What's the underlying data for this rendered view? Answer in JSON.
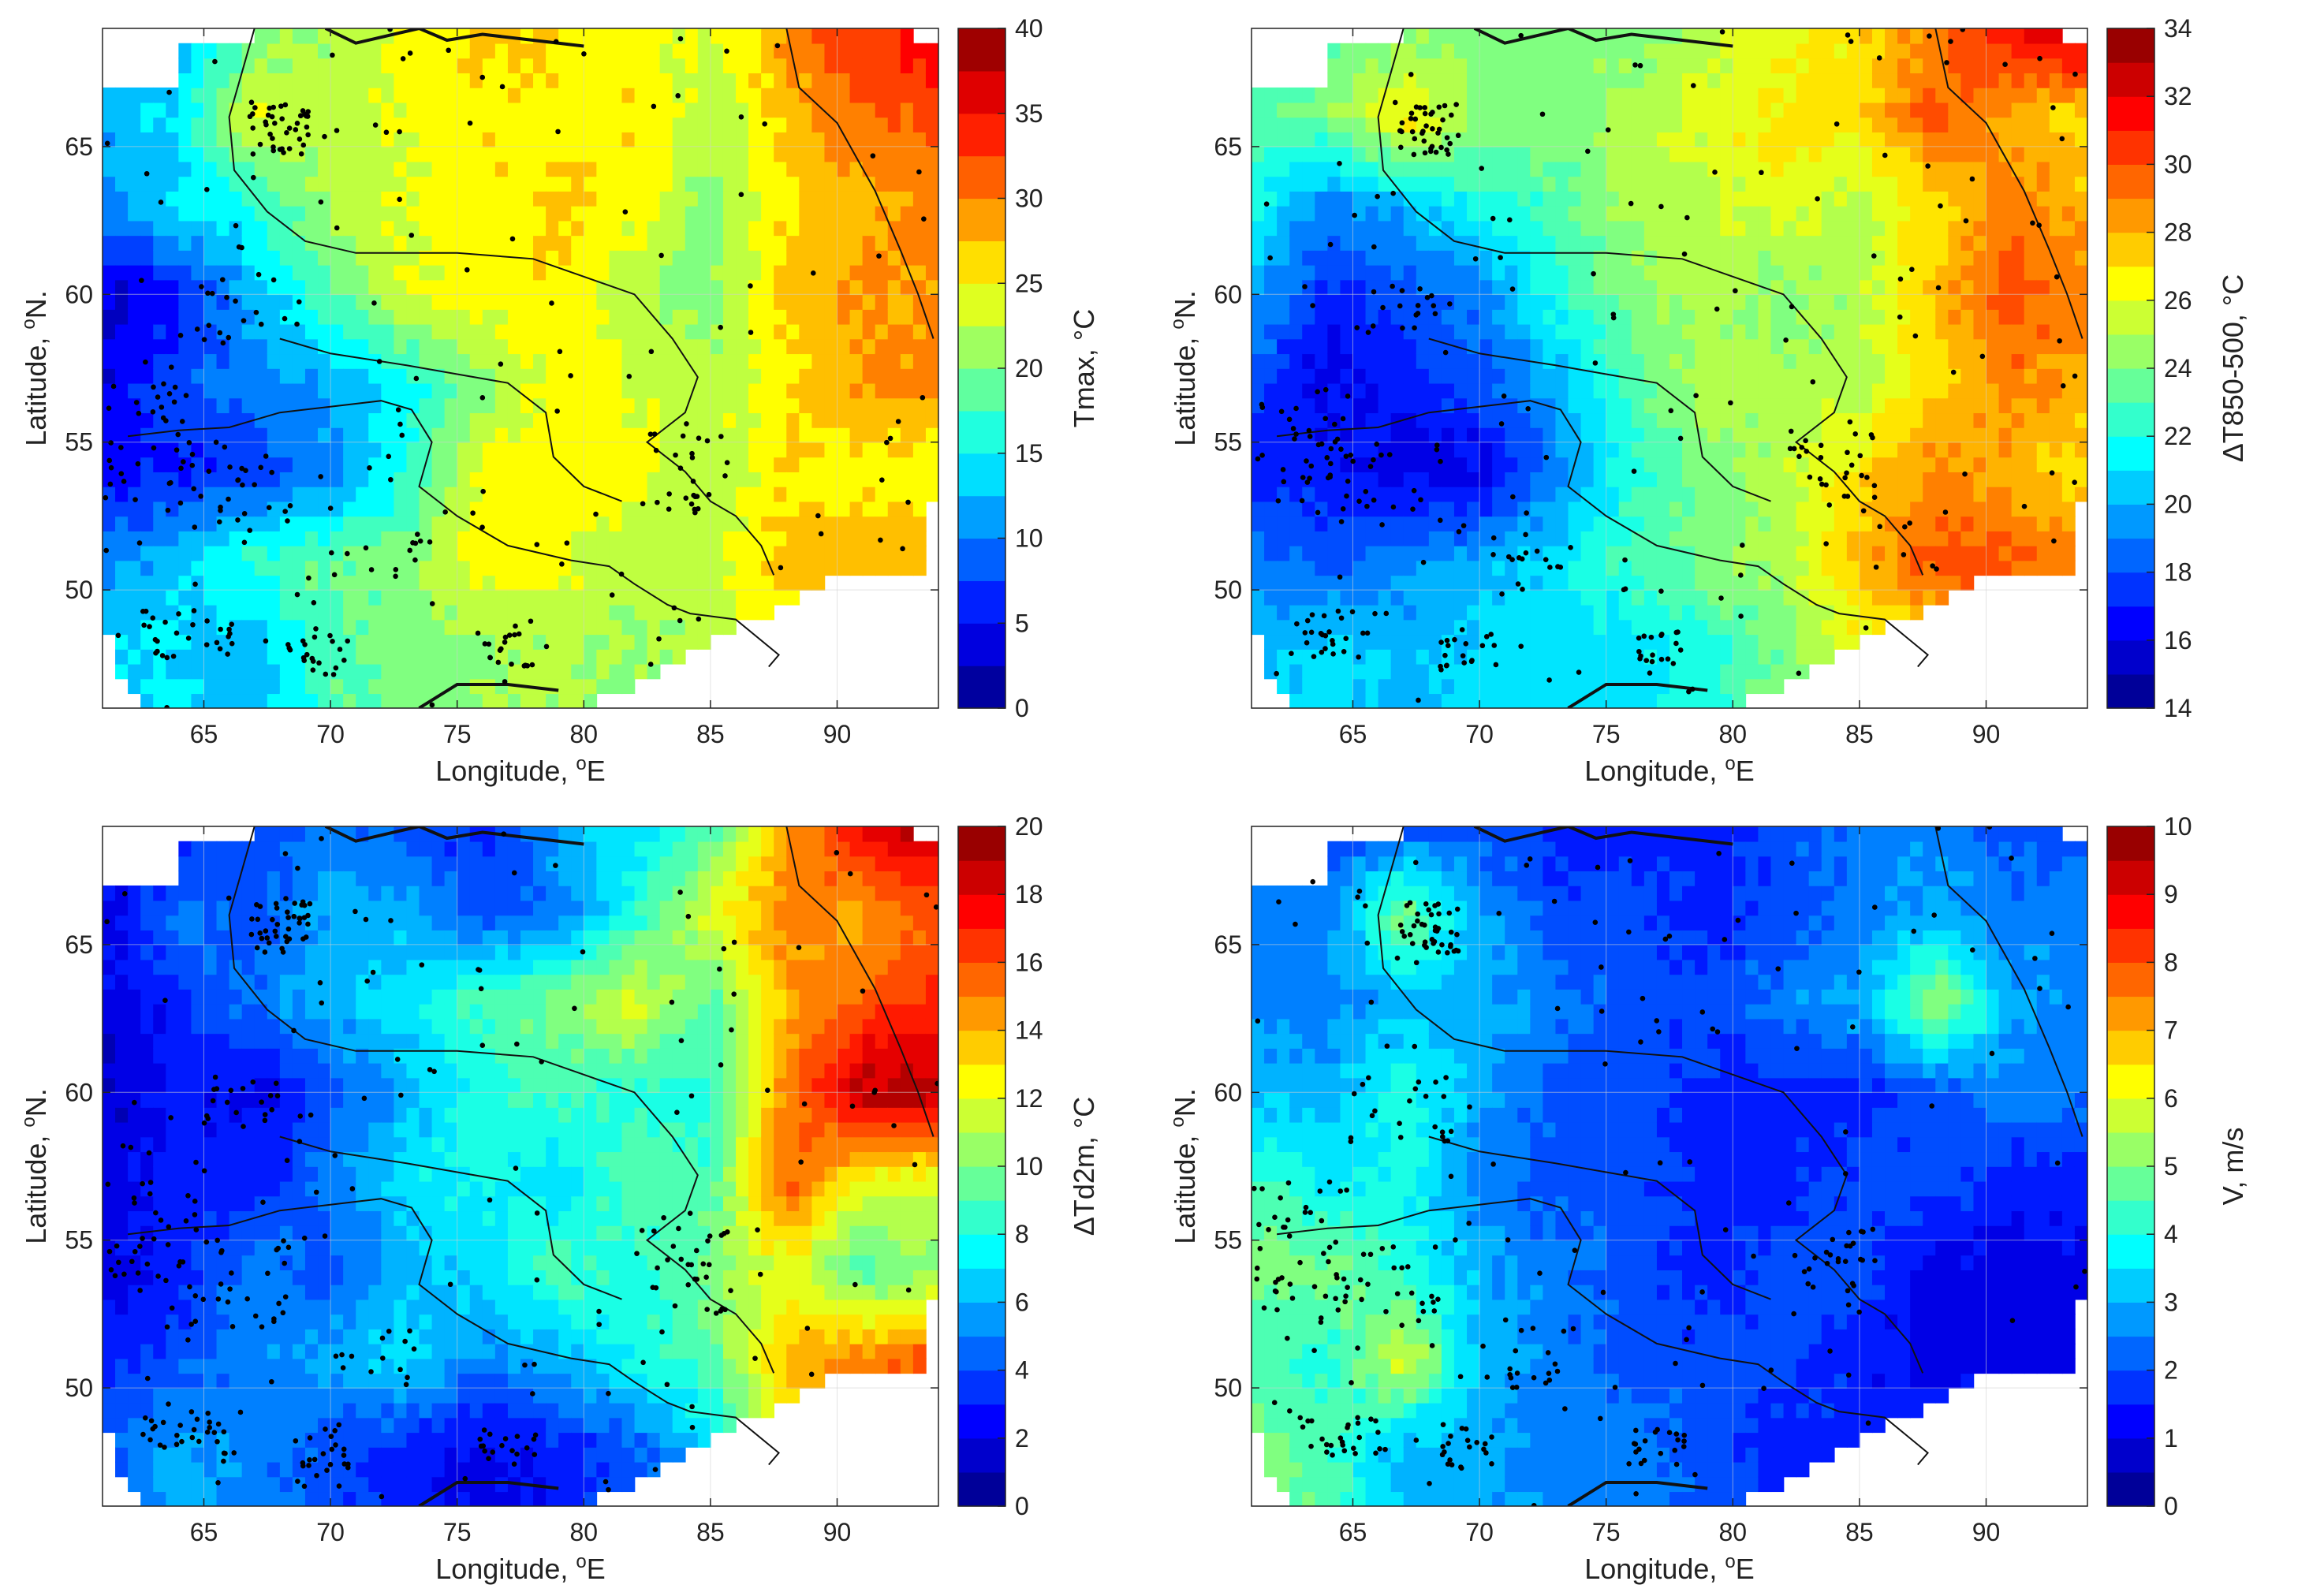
{
  "figure": {
    "panels": [
      {
        "id": "tmax",
        "xlabel": {
          "base": "Longitude, ",
          "sup": "o",
          "tail": "E"
        },
        "ylabel": {
          "base": "Latitude, ",
          "sup": "o",
          "tail": "N."
        },
        "colorbar_label": "Tmax, °C",
        "colorbar_ticks": [
          "0",
          "5",
          "10",
          "15",
          "20",
          "25",
          "30",
          "35",
          "40"
        ]
      },
      {
        "id": "dt850500",
        "xlabel": {
          "base": "Longitude, ",
          "sup": "o",
          "tail": "E"
        },
        "ylabel": {
          "base": "Latitude, ",
          "sup": "o",
          "tail": "N."
        },
        "colorbar_label": "ΔT850-500, °C",
        "colorbar_ticks": [
          "14",
          "16",
          "18",
          "20",
          "22",
          "24",
          "26",
          "28",
          "30",
          "32",
          "34"
        ]
      },
      {
        "id": "dtd2m",
        "xlabel": {
          "base": "Longitude, ",
          "sup": "o",
          "tail": "E"
        },
        "ylabel": {
          "base": "Latitude, ",
          "sup": "o",
          "tail": "N."
        },
        "colorbar_label": "ΔTd2m, °C",
        "colorbar_ticks": [
          "0",
          "2",
          "4",
          "6",
          "8",
          "10",
          "12",
          "14",
          "16",
          "18",
          "20"
        ]
      },
      {
        "id": "wind",
        "xlabel": {
          "base": "Longitude, ",
          "sup": "o",
          "tail": "E"
        },
        "ylabel": {
          "base": "Latitude, ",
          "sup": "o",
          "tail": "N."
        },
        "colorbar_label": "V, m/s",
        "colorbar_ticks": [
          "0",
          "1",
          "2",
          "3",
          "4",
          "5",
          "6",
          "7",
          "8",
          "9",
          "10"
        ]
      }
    ]
  },
  "chart_data": [
    {
      "type": "heatmap",
      "variable": "Tmax, °C",
      "x_ticks": [
        65,
        70,
        75,
        80,
        85,
        90
      ],
      "y_ticks": [
        50,
        55,
        60,
        65
      ],
      "xlim": [
        61,
        94
      ],
      "ylim": [
        46,
        69
      ],
      "colorbar_range": [
        0,
        40
      ],
      "colormap": "jet",
      "stations_shown": true,
      "field_grid": {
        "lon": [
          61,
          64,
          67,
          70,
          73,
          76,
          79,
          82,
          85,
          88,
          91,
          94
        ],
        "lat": [
          48,
          51,
          54,
          57,
          60,
          63,
          66,
          69
        ],
        "values": [
          [
            14,
            14,
            12,
            18,
            20,
            21,
            22,
            21,
            22,
            26,
            26,
            26
          ],
          [
            10,
            13,
            17,
            19,
            20,
            25,
            24,
            22,
            23,
            27,
            28,
            28
          ],
          [
            5,
            6,
            7,
            10,
            16,
            25,
            26,
            24,
            22,
            26,
            25,
            24
          ],
          [
            4,
            8,
            10,
            12,
            15,
            20,
            25,
            24,
            22,
            26,
            29,
            30
          ],
          [
            3,
            6,
            12,
            18,
            24,
            25,
            26,
            22,
            20,
            27,
            29,
            29
          ],
          [
            10,
            14,
            16,
            22,
            24,
            25,
            27,
            25,
            20,
            26,
            28,
            30
          ],
          [
            12,
            14,
            24,
            22,
            24,
            26,
            25,
            26,
            22,
            27,
            31,
            32
          ],
          [
            10,
            12,
            20,
            22,
            24,
            27,
            26,
            25,
            23,
            30,
            33,
            36
          ]
        ]
      }
    },
    {
      "type": "heatmap",
      "variable": "ΔT850-500, °C",
      "x_ticks": [
        65,
        70,
        75,
        80,
        85,
        90
      ],
      "y_ticks": [
        50,
        55,
        60,
        65
      ],
      "xlim": [
        61,
        94
      ],
      "ylim": [
        46,
        69
      ],
      "colorbar_range": [
        14,
        34
      ],
      "colormap": "jet",
      "stations_shown": true,
      "field_grid": {
        "lon": [
          61,
          64,
          67,
          70,
          73,
          76,
          79,
          82,
          85,
          88,
          91,
          94
        ],
        "lat": [
          48,
          51,
          54,
          57,
          60,
          63,
          66,
          69
        ],
        "values": [
          [
            20,
            21,
            20,
            21,
            21,
            21,
            22,
            24,
            26,
            27,
            27,
            27
          ],
          [
            19,
            18,
            19,
            20,
            21,
            23,
            24,
            25,
            28,
            30,
            30,
            29
          ],
          [
            17,
            17,
            16,
            16,
            19,
            22,
            24,
            25,
            27,
            29,
            28,
            27
          ],
          [
            18,
            16,
            17,
            18,
            20,
            23,
            25,
            25,
            25,
            27,
            29,
            28
          ],
          [
            20,
            17,
            18,
            19,
            22,
            24,
            25,
            24,
            25,
            28,
            30,
            29
          ],
          [
            22,
            19,
            20,
            22,
            23,
            25,
            25,
            26,
            25,
            27,
            29,
            28
          ],
          [
            23,
            24,
            27,
            24,
            24,
            25,
            26,
            27,
            27,
            30,
            28,
            27
          ],
          [
            22,
            23,
            24,
            24,
            24,
            24,
            25,
            26,
            27,
            29,
            32,
            33
          ]
        ]
      }
    },
    {
      "type": "heatmap",
      "variable": "ΔTd2m, °C",
      "x_ticks": [
        65,
        70,
        75,
        80,
        85,
        90
      ],
      "y_ticks": [
        50,
        55,
        60,
        65
      ],
      "xlim": [
        61,
        94
      ],
      "ylim": [
        46,
        69
      ],
      "colorbar_range": [
        0,
        20
      ],
      "colormap": "jet",
      "stations_shown": true,
      "field_grid": {
        "lon": [
          61,
          64,
          67,
          70,
          73,
          76,
          79,
          82,
          85,
          88,
          91,
          94
        ],
        "lat": [
          48,
          51,
          54,
          57,
          60,
          63,
          66,
          69
        ],
        "values": [
          [
            4,
            6,
            5,
            4,
            3,
            2,
            3,
            4,
            7,
            12,
            14,
            14
          ],
          [
            3,
            4,
            5,
            6,
            7,
            5,
            6,
            8,
            9,
            14,
            15,
            16
          ],
          [
            2,
            3,
            5,
            4,
            6,
            7,
            9,
            8,
            10,
            12,
            9,
            10
          ],
          [
            2,
            3,
            3,
            5,
            7,
            8,
            7,
            9,
            9,
            16,
            12,
            12
          ],
          [
            1,
            3,
            2,
            4,
            6,
            8,
            9,
            8,
            8,
            15,
            19,
            19
          ],
          [
            2,
            3,
            5,
            6,
            7,
            9,
            10,
            12,
            9,
            14,
            16,
            17
          ],
          [
            2,
            5,
            4,
            6,
            6,
            4,
            5,
            8,
            12,
            15,
            14,
            16
          ],
          [
            2,
            3,
            4,
            5,
            4,
            3,
            6,
            7,
            9,
            14,
            18,
            19
          ]
        ]
      }
    },
    {
      "type": "heatmap",
      "variable": "V, m/s",
      "x_ticks": [
        65,
        70,
        75,
        80,
        85,
        90
      ],
      "y_ticks": [
        50,
        55,
        60,
        65
      ],
      "xlim": [
        61,
        94
      ],
      "ylim": [
        46,
        69
      ],
      "colorbar_range": [
        0,
        10
      ],
      "colormap": "jet",
      "stations_shown": true,
      "field_grid": {
        "lon": [
          61,
          64,
          67,
          70,
          73,
          76,
          79,
          82,
          85,
          88,
          91,
          94
        ],
        "lat": [
          48,
          51,
          54,
          57,
          60,
          63,
          66,
          69
        ],
        "values": [
          [
            5.0,
            4.5,
            3.0,
            3.0,
            2.5,
            2.5,
            2.0,
            1.5,
            1.5,
            1.5,
            1.5,
            1.5
          ],
          [
            4.5,
            4.0,
            6.0,
            3.0,
            2.5,
            2.0,
            2.0,
            2.0,
            1.5,
            1.0,
            1.0,
            1.0
          ],
          [
            5.0,
            5.0,
            4.0,
            3.0,
            2.5,
            2.0,
            1.5,
            2.0,
            2.0,
            1.0,
            1.0,
            1.0
          ],
          [
            4.5,
            3.5,
            4.0,
            2.5,
            2.0,
            2.0,
            1.5,
            1.5,
            2.0,
            2.0,
            1.5,
            1.5
          ],
          [
            3.0,
            3.0,
            4.0,
            3.0,
            2.0,
            2.0,
            1.5,
            1.5,
            1.5,
            2.0,
            2.5,
            2.5
          ],
          [
            2.5,
            2.5,
            3.0,
            3.0,
            2.5,
            2.0,
            2.0,
            2.5,
            3.0,
            5.5,
            3.0,
            2.5
          ],
          [
            2.5,
            2.5,
            5.0,
            3.0,
            2.0,
            2.0,
            1.5,
            2.0,
            2.5,
            3.0,
            2.5,
            2.5
          ],
          [
            2.0,
            2.0,
            2.0,
            2.0,
            1.5,
            1.5,
            1.5,
            2.0,
            2.5,
            2.5,
            2.0,
            2.0
          ]
        ]
      }
    }
  ]
}
